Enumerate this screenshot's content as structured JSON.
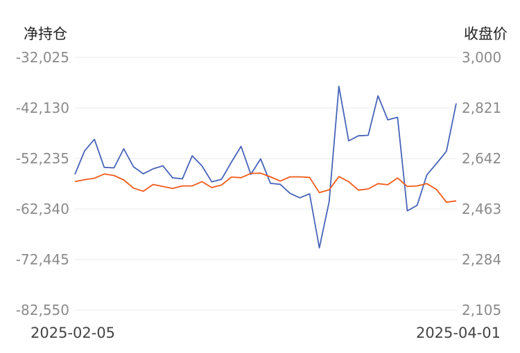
{
  "chart_data": {
    "type": "line",
    "left_axis_title": "净持仓",
    "right_axis_title": "收盘价",
    "left_ticks": [
      "-32,025",
      "-42,130",
      "-52,235",
      "-62,340",
      "-72,445",
      "-82,550"
    ],
    "right_ticks": [
      "3,000",
      "2,821",
      "2,642",
      "2,463",
      "2,284",
      "2,105"
    ],
    "left_range": [
      -82550,
      -32025
    ],
    "right_range": [
      2105,
      3000
    ],
    "x_start_label": "2025-02-05",
    "x_end_label": "2025-04-01",
    "grid": true,
    "series": [
      {
        "axis": "left",
        "color": "#4763b8",
        "values": [
          -55400,
          -50700,
          -48400,
          -54000,
          -54100,
          -50300,
          -53900,
          -55300,
          -54300,
          -53700,
          -56100,
          -56300,
          -51700,
          -53700,
          -56900,
          -56400,
          -53000,
          -49800,
          -55400,
          -52300,
          -57200,
          -57400,
          -59200,
          -60100,
          -59300,
          -70100,
          -60900,
          -37800,
          -48700,
          -47700,
          -47600,
          -39700,
          -44500,
          -44000,
          -62700,
          -61600,
          -55500,
          -53200,
          -50800,
          -41200
        ]
      },
      {
        "axis": "right",
        "color": "#f05a19",
        "values": [
          2560,
          2567,
          2572,
          2587,
          2582,
          2566,
          2537,
          2526,
          2550,
          2543,
          2536,
          2545,
          2545,
          2560,
          2539,
          2548,
          2576,
          2574,
          2589,
          2590,
          2577,
          2562,
          2577,
          2577,
          2575,
          2521,
          2531,
          2578,
          2560,
          2530,
          2534,
          2553,
          2549,
          2573,
          2543,
          2545,
          2553,
          2532,
          2487,
          2492
        ]
      }
    ]
  }
}
